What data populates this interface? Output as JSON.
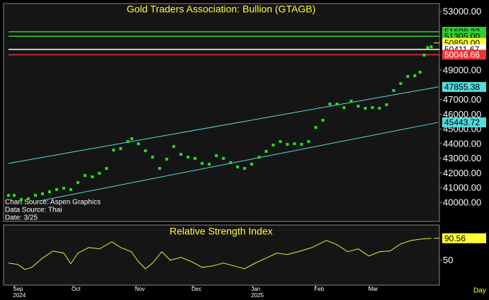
{
  "chart_data": [
    {
      "type": "scatter",
      "title": "Gold Traders Association: Bullion (GTAGB)",
      "annotations": [
        "Chart Source: Aspen Graphics",
        "Data Source: Thai",
        "Date: 3/25"
      ],
      "color": "#22e022",
      "x": [
        1.8,
        3.9,
        6.5,
        9.1,
        11.7,
        14.3,
        16.9,
        19.5,
        22.1,
        24.7,
        27.3,
        29.9,
        32.6,
        35.2,
        37.8,
        40.4,
        43.0,
        45.6,
        47.1,
        49.5,
        52.1,
        54.7,
        57.3,
        59.9,
        62.5,
        65.1,
        67.7,
        70.3,
        72.9,
        75.5,
        78.1,
        80.7,
        83.3,
        85.9,
        88.5,
        91.1,
        93.8,
        96.4,
        99.0,
        101.6,
        104.2,
        106.8,
        109.4,
        112.0,
        114.6,
        117.2,
        119.8,
        122.4,
        125.0,
        127.6,
        130.2,
        132.8,
        135.4,
        138.0,
        140.6,
        143.2,
        145.8,
        148.4,
        151.0,
        152.9,
        154.4,
        155.7,
        157.0
      ],
      "values": [
        40480,
        40480,
        40190,
        40240,
        40480,
        40580,
        40720,
        40870,
        40960,
        40870,
        41350,
        41830,
        41740,
        41980,
        42310,
        43560,
        43660,
        44140,
        44330,
        43990,
        43510,
        43080,
        42310,
        42940,
        43800,
        43270,
        43080,
        42990,
        42650,
        42600,
        43180,
        42990,
        42700,
        42410,
        42310,
        42600,
        43080,
        43470,
        43900,
        44140,
        43950,
        43990,
        43950,
        44140,
        45100,
        45590,
        46690,
        46690,
        46450,
        46890,
        46550,
        46400,
        46450,
        46400,
        46640,
        47610,
        48090,
        48570,
        48620,
        48860,
        50020,
        50540,
        50590
      ],
      "trend_lines": [
        {
          "x": [
            1.8,
            159.6
          ],
          "values": [
            42650,
            47855.38
          ],
          "value_label": "47855.38",
          "color": "#55dddd"
        },
        {
          "x": [
            14.3,
            159.6
          ],
          "values": [
            40140,
            45443.72
          ],
          "value_label": "45443.72",
          "color": "#55dddd"
        }
      ],
      "levels": {
        "values": [
          51608.33,
          51305,
          50850,
          50411.67,
          50046.66
        ],
        "value_labels": [
          "51608.33",
          "51305.00",
          "50850.00",
          "50411.67",
          "50046.66"
        ],
        "colors": [
          "#33cc33",
          "#33cc33",
          "#ffff33",
          "#ffffff",
          "#ee3333"
        ],
        "line_colors": [
          "#33cc33",
          "#33cc33",
          null,
          "#ffffff",
          "#ee3333"
        ]
      },
      "xlim": [
        0,
        160
      ],
      "ylim": [
        38700,
        53530
      ],
      "yticks": [
        {
          "value": 53000,
          "label": "53000.00"
        },
        {
          "value": 49000,
          "label": "49000.00"
        },
        {
          "value": 47000,
          "label": "47000.00"
        },
        {
          "value": 46000,
          "label": "46000.00"
        },
        {
          "value": 45000,
          "label": "45000.00"
        },
        {
          "value": 44000,
          "label": "44000.00"
        },
        {
          "value": 43000,
          "label": "43000.00"
        },
        {
          "value": 42000,
          "label": "42000.00"
        },
        {
          "value": 41000,
          "label": "41000.00"
        },
        {
          "value": 40000,
          "label": "40000.00"
        }
      ]
    },
    {
      "type": "line",
      "title": "Relative Strength Index",
      "color": "#eeee33",
      "x": [
        1.8,
        5.2,
        7.8,
        10.4,
        14.3,
        18.2,
        22.1,
        24.7,
        27.3,
        31.3,
        35.2,
        39.8,
        43.0,
        46.9,
        49.5,
        52.1,
        54.7,
        58.1,
        61.2,
        65.1,
        69.0,
        72.9,
        76.8,
        80.7,
        84.6,
        88.5,
        92.4,
        96.4,
        100.3,
        104.2,
        108.1,
        113.3,
        118.5,
        122.4,
        126.3,
        130.2,
        134.1,
        138.0,
        141.9,
        145.8,
        149.7,
        153.6,
        157.0
      ],
      "values": [
        44.8,
        42.2,
        33,
        36.9,
        53.9,
        67,
        63.1,
        43.5,
        63.1,
        73.5,
        70.9,
        84,
        73.5,
        65.7,
        47.4,
        34.3,
        44.8,
        65.7,
        50,
        55.2,
        47.4,
        36.9,
        39.5,
        44.8,
        39.5,
        34.3,
        44.8,
        53.9,
        63.1,
        60.5,
        65.7,
        73.5,
        86.6,
        78.8,
        65.7,
        70.9,
        57.8,
        65.7,
        67,
        80.1,
        86.6,
        89.2,
        90.56
      ],
      "last_value": 90.56,
      "xlim": [
        0,
        160
      ],
      "ylim": [
        4,
        115
      ],
      "yticks": [
        50
      ],
      "xticks": [
        {
          "value": 4,
          "label": "Sep"
        },
        {
          "value": 25.5,
          "label": "Oct"
        },
        {
          "value": 48.7,
          "label": "Nov"
        },
        {
          "value": 69.5,
          "label": "Dec"
        },
        {
          "value": 91.4,
          "label": "Jan"
        },
        {
          "value": 114.6,
          "label": "Feb"
        },
        {
          "value": 134.4,
          "label": "Mar"
        }
      ],
      "year_labels": [
        {
          "value": 4,
          "label": "2024"
        },
        {
          "value": 91.4,
          "label": "2025"
        }
      ],
      "x_unit_label": "Day"
    }
  ]
}
